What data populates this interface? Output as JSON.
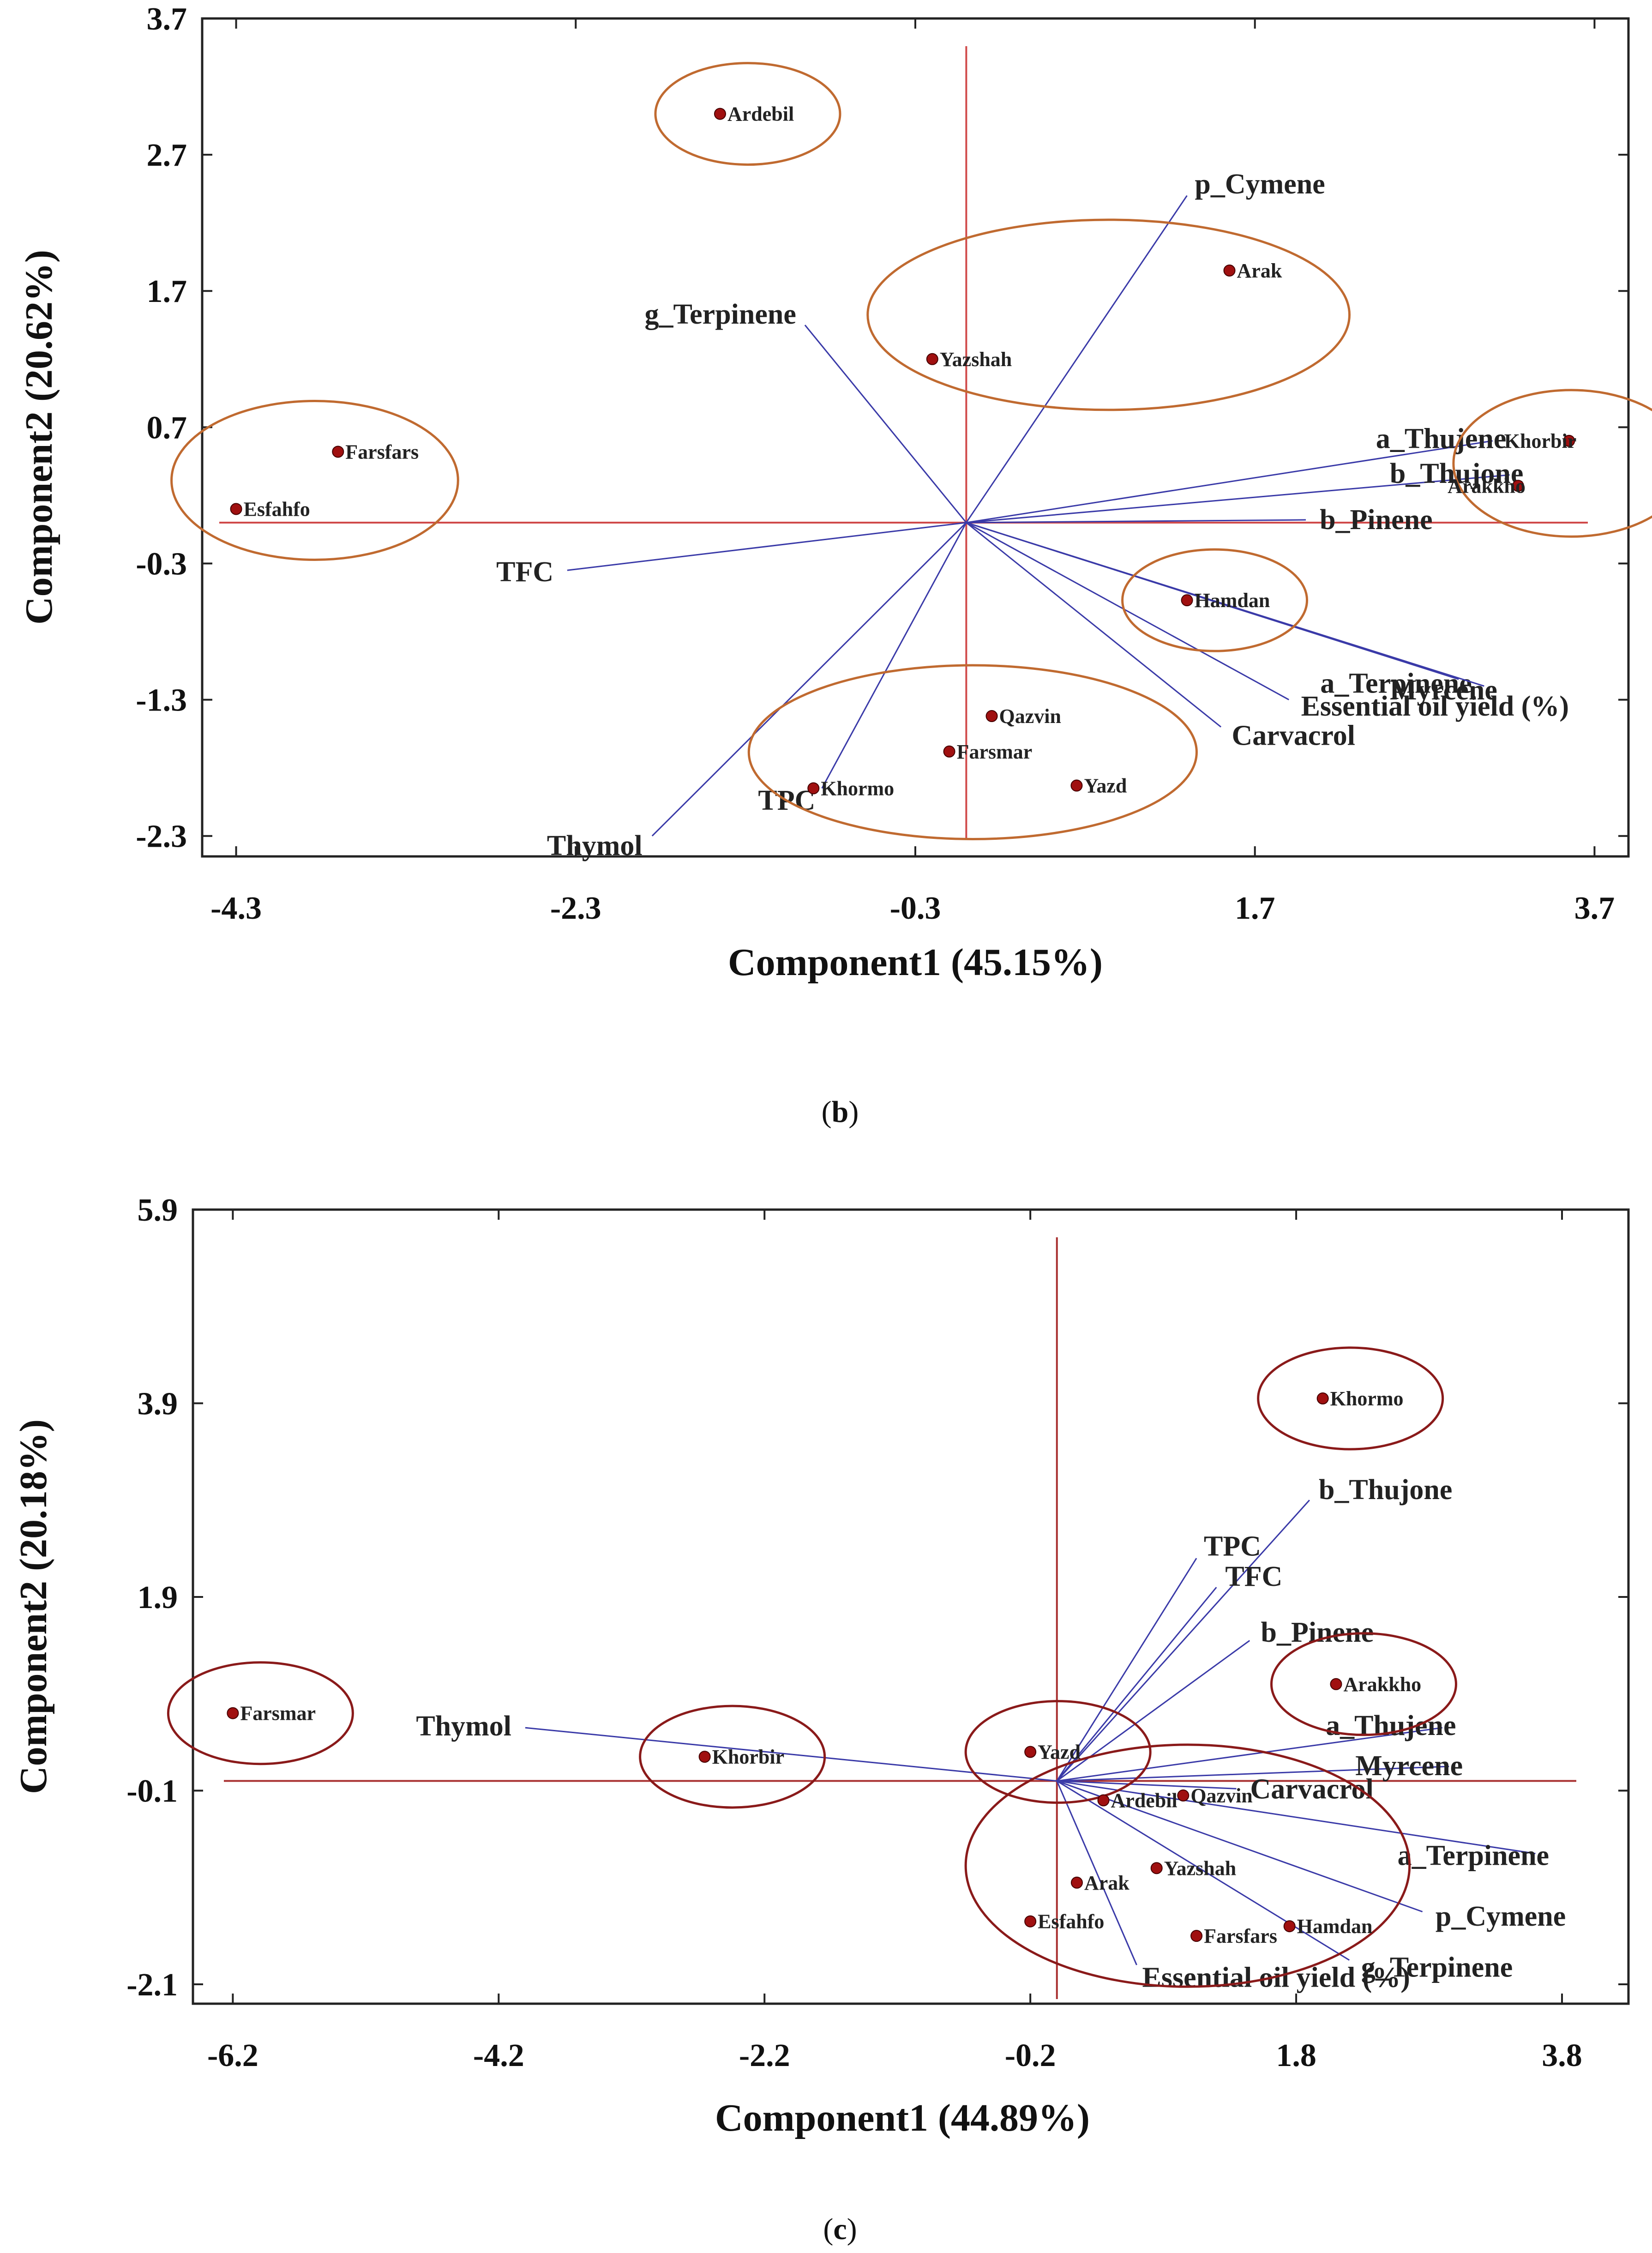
{
  "chart_data": [
    {
      "type": "biplot",
      "panel_label": "b",
      "xlabel": "Component1 (45.15%)",
      "ylabel": "Component2 (20.62%)",
      "xlim": [
        -4.5,
        3.9
      ],
      "ylim": [
        -2.45,
        3.7
      ],
      "xticks": [
        "-4.3",
        "-2.3",
        "-0.3",
        "1.7",
        "3.7"
      ],
      "yticks": [
        "3.7",
        "2.7",
        "1.7",
        "0.7",
        "-0.3",
        "-1.3",
        "-2.3"
      ],
      "axis_color": "#d04a4a",
      "point_color": "#a01010",
      "vector_color": "#3a3aa8",
      "group_color": "#c06a30",
      "points": [
        {
          "name": "Ardebil",
          "x": -1.45,
          "y": 3.0
        },
        {
          "name": "Arak",
          "x": 1.55,
          "y": 1.85
        },
        {
          "name": "Yazshah",
          "x": -0.2,
          "y": 1.2
        },
        {
          "name": "Farsfars",
          "x": -3.7,
          "y": 0.52
        },
        {
          "name": "Esfahfo",
          "x": -4.3,
          "y": 0.1
        },
        {
          "name": "Khorbir",
          "x": 3.55,
          "y": 0.6
        },
        {
          "name": "Arakkho",
          "x": 3.25,
          "y": 0.27
        },
        {
          "name": "Hamdan",
          "x": 1.3,
          "y": -0.57
        },
        {
          "name": "Qazvin",
          "x": 0.15,
          "y": -1.42
        },
        {
          "name": "Farsmar",
          "x": -0.1,
          "y": -1.68
        },
        {
          "name": "Khormo",
          "x": -0.9,
          "y": -1.95
        },
        {
          "name": "Yazd",
          "x": 0.65,
          "y": -1.93
        }
      ],
      "vectors": [
        {
          "name": "p_Cymene",
          "x": 1.3,
          "y": 2.4
        },
        {
          "name": "g_Terpinene",
          "x": -0.95,
          "y": 1.45
        },
        {
          "name": "a_Thujene",
          "x": 3.1,
          "y": 0.6
        },
        {
          "name": "b_Thujone",
          "x": 3.2,
          "y": 0.35
        },
        {
          "name": "b_Pinene",
          "x": 2.0,
          "y": 0.02
        },
        {
          "name": "TFC",
          "x": -2.35,
          "y": -0.35
        },
        {
          "name": "a_Terpinene",
          "x": 2.9,
          "y": -1.15
        },
        {
          "name": "Myrcene",
          "x": 3.05,
          "y": -1.2
        },
        {
          "name": "Essential oil yield (%)",
          "x": 1.9,
          "y": -1.3
        },
        {
          "name": "Carvacrol",
          "x": 1.5,
          "y": -1.5
        },
        {
          "name": "TPC",
          "x": -0.85,
          "y": -1.95
        },
        {
          "name": "Thymol",
          "x": -1.85,
          "y": -2.3
        }
      ],
      "groups": [
        {
          "members": [
            "Ardebil"
          ]
        },
        {
          "members": [
            "Arak",
            "Yazshah"
          ]
        },
        {
          "members": [
            "Farsfars",
            "Esfahfo"
          ]
        },
        {
          "members": [
            "Khorbir",
            "Arakkho"
          ]
        },
        {
          "members": [
            "Hamdan"
          ]
        },
        {
          "members": [
            "Qazvin",
            "Farsmar",
            "Khormo",
            "Yazd"
          ]
        }
      ]
    },
    {
      "type": "biplot",
      "panel_label": "c",
      "xlabel": "Component1 (44.89%)",
      "ylabel": "Component2 (20.18%)",
      "xlim": [
        -6.5,
        4.3
      ],
      "ylim": [
        -2.3,
        5.9
      ],
      "xticks": [
        "-6.2",
        "-4.2",
        "-2.2",
        "-0.2",
        "1.8",
        "3.8"
      ],
      "yticks": [
        "5.9",
        "3.9",
        "1.9",
        "-0.1",
        "-2.1"
      ],
      "axis_color": "#a83030",
      "point_color": "#a01010",
      "vector_color": "#3a3aa8",
      "group_color": "#8a1a1a",
      "points": [
        {
          "name": "Khormo",
          "x": 2.0,
          "y": 3.95
        },
        {
          "name": "Arakkho",
          "x": 2.1,
          "y": 1.0
        },
        {
          "name": "Farsmar",
          "x": -6.2,
          "y": 0.7
        },
        {
          "name": "Khorbir",
          "x": -2.65,
          "y": 0.25
        },
        {
          "name": "Yazd",
          "x": -0.2,
          "y": 0.3
        },
        {
          "name": "Ardebil",
          "x": 0.35,
          "y": -0.2
        },
        {
          "name": "Qazvin",
          "x": 0.95,
          "y": -0.15
        },
        {
          "name": "Yazshah",
          "x": 0.75,
          "y": -0.9
        },
        {
          "name": "Arak",
          "x": 0.15,
          "y": -1.05
        },
        {
          "name": "Esfahfo",
          "x": -0.2,
          "y": -1.45
        },
        {
          "name": "Farsfars",
          "x": 1.05,
          "y": -1.6
        },
        {
          "name": "Hamdan",
          "x": 1.75,
          "y": -1.5
        }
      ],
      "vectors": [
        {
          "name": "b_Thujone",
          "x": 1.9,
          "y": 2.9
        },
        {
          "name": "TPC",
          "x": 1.05,
          "y": 2.3
        },
        {
          "name": "TFC",
          "x": 1.2,
          "y": 2.0
        },
        {
          "name": "b_Pinene",
          "x": 1.45,
          "y": 1.45
        },
        {
          "name": "a_Thujene",
          "x": 2.9,
          "y": 0.55
        },
        {
          "name": "Myrcene",
          "x": 2.95,
          "y": 0.15
        },
        {
          "name": "Carvacrol",
          "x": 1.35,
          "y": -0.08
        },
        {
          "name": "a_Terpinene",
          "x": 3.6,
          "y": -0.75
        },
        {
          "name": "p_Cymene",
          "x": 2.75,
          "y": -1.35
        },
        {
          "name": "g_Terpinene",
          "x": 2.2,
          "y": -1.85
        },
        {
          "name": "Essential oil yield (%)",
          "x": 0.6,
          "y": -1.9
        },
        {
          "name": "Thymol",
          "x": -4.0,
          "y": 0.55
        }
      ],
      "groups": [
        {
          "members": [
            "Khormo"
          ]
        },
        {
          "members": [
            "Arakkho"
          ]
        },
        {
          "members": [
            "Farsmar"
          ]
        },
        {
          "members": [
            "Khorbir"
          ]
        },
        {
          "members": [
            "Yazd"
          ]
        },
        {
          "members": [
            "Ardebil",
            "Qazvin",
            "Yazshah",
            "Arak",
            "Esfahfo",
            "Farsfars",
            "Hamdan"
          ]
        }
      ]
    }
  ]
}
